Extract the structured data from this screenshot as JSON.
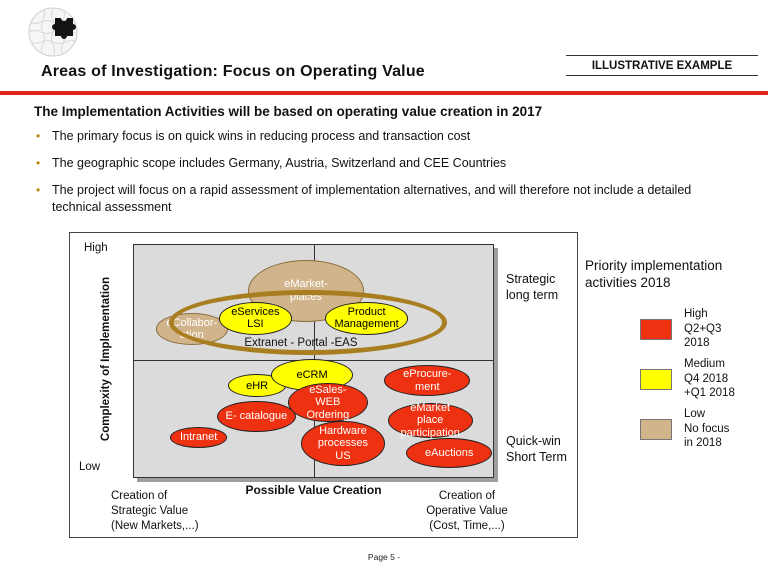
{
  "header": {
    "title": "Areas of Investigation: Focus on Operating Value",
    "stamp": "ILLUSTRATIVE EXAMPLE",
    "accent_color": "#E0261C"
  },
  "intro": {
    "heading": "The Implementation Activities will  be based on operating value creation in 2017",
    "bullets": [
      "The primary focus is on quick wins in reducing process and transaction cost",
      "The geographic scope includes Germany, Austria, Switzerland and CEE Countries",
      "The project will focus on a rapid assessment of implementation alternatives, and will therefore not include a detailed technical assessment"
    ]
  },
  "chart_data": {
    "type": "bubble-matrix",
    "xlabel": "Possible Value Creation",
    "ylabel": "Complexity of Implementation",
    "y_high": "High",
    "y_low": "Low",
    "quadrant_label_top": "Strategic\nlong term",
    "quadrant_label_bottom": "Quick-win\nShort Term",
    "x_left_label": "Creation of\nStrategic Value\n(New Markets,...)",
    "x_right_label": "Creation of\nOperative Value\n(Cost, Time,...)",
    "ring_label": "Extranet - Portal -EAS",
    "ring_color": "#A97E20",
    "bubbles": [
      {
        "id": "emarket-places",
        "label": "eMarket-\nplaces",
        "priority": "low",
        "cx": 47.9,
        "cy": 19.7,
        "rx": 16.1,
        "ry": 13.3
      },
      {
        "id": "ecollaboration",
        "label": "eCollabor-\nation",
        "priority": "low",
        "cx": 16.1,
        "cy": 36.3,
        "rx": 10.0,
        "ry": 6.8
      },
      {
        "id": "eservices-lsi",
        "label": "eServices\nLSI",
        "priority": "medium",
        "cx": 33.8,
        "cy": 31.6,
        "rx": 10.2,
        "ry": 7.0
      },
      {
        "id": "product-management",
        "label": "Product\nManagement",
        "priority": "medium",
        "cx": 64.8,
        "cy": 31.6,
        "rx": 11.6,
        "ry": 7.0
      },
      {
        "id": "ehr",
        "label": "eHR",
        "priority": "medium",
        "cx": 34.3,
        "cy": 60.7,
        "rx": 8.0,
        "ry": 4.9
      },
      {
        "id": "ecrm",
        "label": "eCRM",
        "priority": "medium",
        "cx": 49.6,
        "cy": 56.0,
        "rx": 11.4,
        "ry": 6.8
      },
      {
        "id": "esales-web-ordering",
        "label": "eSales-\nWEB\nOrdering",
        "priority": "high",
        "cx": 54.0,
        "cy": 67.9,
        "rx": 11.1,
        "ry": 8.5
      },
      {
        "id": "e-catalogue",
        "label": "E- catalogue",
        "priority": "high",
        "cx": 34.1,
        "cy": 73.9,
        "rx": 11.1,
        "ry": 6.8
      },
      {
        "id": "intranet",
        "label": "Intranet",
        "priority": "high",
        "cx": 18.0,
        "cy": 82.9,
        "rx": 8.0,
        "ry": 4.5
      },
      {
        "id": "eprocurement",
        "label": "eProcure-\nment",
        "priority": "high",
        "cx": 81.7,
        "cy": 58.5,
        "rx": 12.0,
        "ry": 6.6
      },
      {
        "id": "emarket-place-participation",
        "label": "eMarket\nplace\nparticipation",
        "priority": "high",
        "cx": 82.5,
        "cy": 75.6,
        "rx": 11.8,
        "ry": 7.5
      },
      {
        "id": "hardware-processes-us",
        "label": "Hardware\nprocesses\nUS",
        "priority": "high",
        "cx": 58.2,
        "cy": 85.5,
        "rx": 11.6,
        "ry": 9.6
      },
      {
        "id": "eauctions",
        "label": "eAuctions",
        "priority": "high",
        "cx": 87.8,
        "cy": 89.7,
        "rx": 12.0,
        "ry": 6.6
      }
    ]
  },
  "legend": {
    "title": "Priority implementation\nactivities 2018",
    "items": [
      {
        "priority": "high",
        "label": "High\nQ2+Q3\n2018",
        "color": "#EE3211"
      },
      {
        "priority": "medium",
        "label": "Medium\nQ4 2018\n+Q1 2018",
        "color": "#FFFF00"
      },
      {
        "priority": "low",
        "label": "Low\nNo focus\nin 2018",
        "color": "#D2B48C"
      }
    ]
  },
  "footer": {
    "page_label": "Page 5 -"
  }
}
